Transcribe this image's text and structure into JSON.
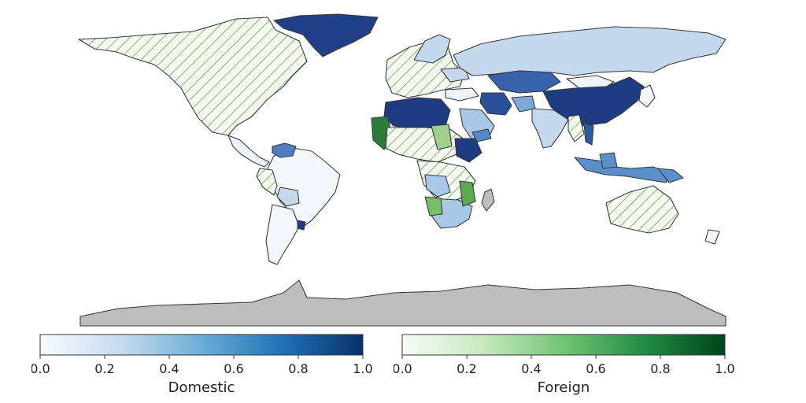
{
  "colorbars": {
    "domestic": {
      "label": "Domestic",
      "ticks": [
        "0.0",
        "0.2",
        "0.4",
        "0.6",
        "0.8",
        "1.0"
      ],
      "gradient": [
        "#f7fbff",
        "#c6dbef",
        "#6baed6",
        "#2171b5",
        "#08306b"
      ]
    },
    "foreign": {
      "label": "Foreign",
      "ticks": [
        "0.0",
        "0.2",
        "0.4",
        "0.6",
        "0.8",
        "1.0"
      ],
      "gradient": [
        "#f7fcf5",
        "#c7e9c0",
        "#74c476",
        "#238b45",
        "#00441b"
      ]
    }
  },
  "legend_placement": "bottom",
  "colors": {
    "antarctica": "#bdbdbd",
    "border": "#3a3a3a",
    "hatch_line": "#4a7a3a",
    "hatch_bg": "#f4fbef"
  }
}
